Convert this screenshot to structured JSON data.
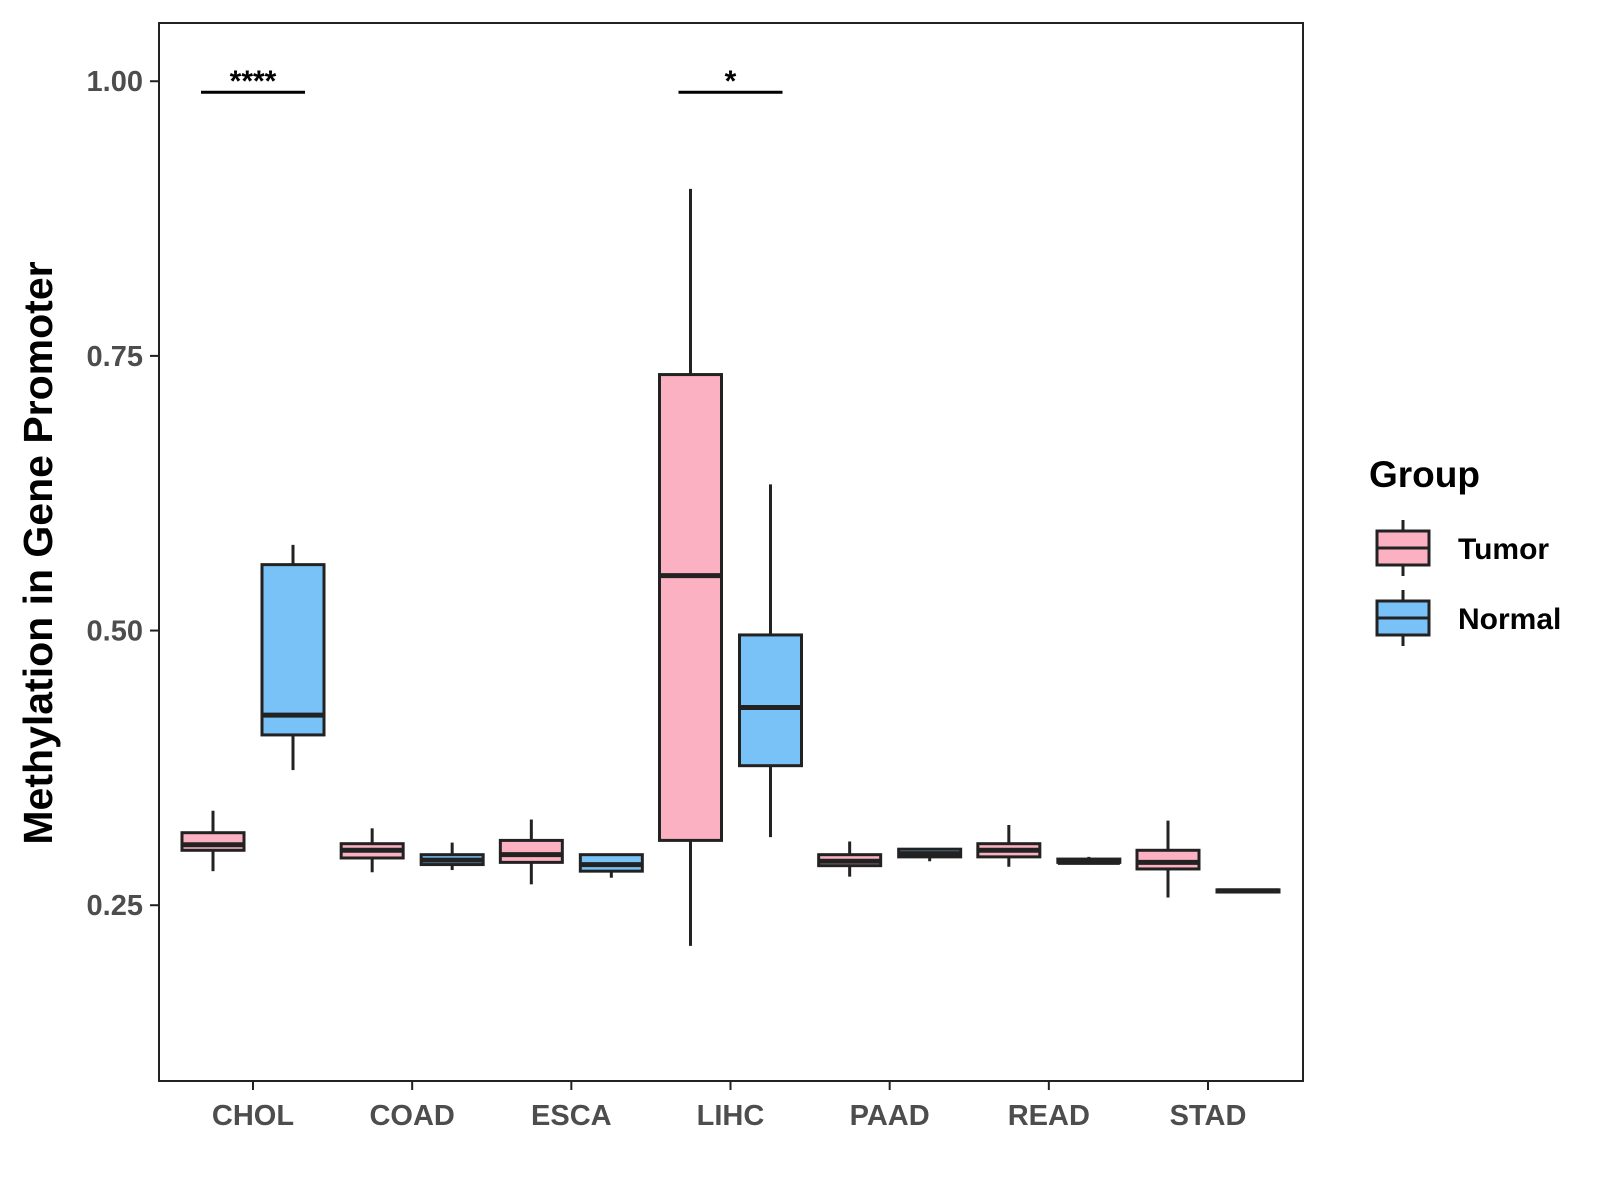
{
  "chart_data": {
    "type": "boxplot",
    "title": "",
    "xlabel": "",
    "ylabel": "Methylation in Gene Promoter",
    "ylim": [
      0.09,
      1.053
    ],
    "yticks": [
      0.25,
      0.5,
      0.75,
      1.0
    ],
    "ytick_labels": [
      "0.25",
      "0.50",
      "0.75",
      "1.00"
    ],
    "categories": [
      "CHOL",
      "COAD",
      "ESCA",
      "LIHC",
      "PAAD",
      "READ",
      "STAD"
    ],
    "legend": {
      "title": "Group",
      "position": "right",
      "entries": [
        {
          "name": "Tumor",
          "color": "#fbb1c1"
        },
        {
          "name": "Normal",
          "color": "#79c2f8"
        }
      ]
    },
    "series": [
      {
        "name": "Tumor",
        "color": "#fbb1c1",
        "boxes": [
          {
            "category": "CHOL",
            "min": 0.281,
            "q1": 0.3,
            "median": 0.305,
            "q3": 0.316,
            "max": 0.336
          },
          {
            "category": "COAD",
            "min": 0.28,
            "q1": 0.293,
            "median": 0.3,
            "q3": 0.306,
            "max": 0.32
          },
          {
            "category": "ESCA",
            "min": 0.269,
            "q1": 0.289,
            "median": 0.296,
            "q3": 0.309,
            "max": 0.328
          },
          {
            "category": "LIHC",
            "min": 0.213,
            "q1": 0.309,
            "median": 0.55,
            "q3": 0.733,
            "max": 0.902
          },
          {
            "category": "PAAD",
            "min": 0.276,
            "q1": 0.286,
            "median": 0.29,
            "q3": 0.296,
            "max": 0.308
          },
          {
            "category": "READ",
            "min": 0.285,
            "q1": 0.294,
            "median": 0.3,
            "q3": 0.306,
            "max": 0.323
          },
          {
            "category": "STAD",
            "min": 0.257,
            "q1": 0.283,
            "median": 0.289,
            "q3": 0.3,
            "max": 0.327
          }
        ]
      },
      {
        "name": "Normal",
        "color": "#79c2f8",
        "boxes": [
          {
            "category": "CHOL",
            "min": 0.373,
            "q1": 0.405,
            "median": 0.423,
            "q3": 0.56,
            "max": 0.578
          },
          {
            "category": "COAD",
            "min": 0.282,
            "q1": 0.287,
            "median": 0.291,
            "q3": 0.296,
            "max": 0.307
          },
          {
            "category": "ESCA",
            "min": 0.275,
            "q1": 0.281,
            "median": 0.287,
            "q3": 0.296,
            "max": 0.297
          },
          {
            "category": "LIHC",
            "min": 0.312,
            "q1": 0.377,
            "median": 0.43,
            "q3": 0.496,
            "max": 0.633
          },
          {
            "category": "PAAD",
            "min": 0.29,
            "q1": 0.294,
            "median": 0.297,
            "q3": 0.301,
            "max": 0.302
          },
          {
            "category": "READ",
            "min": 0.287,
            "q1": 0.289,
            "median": 0.289,
            "q3": 0.292,
            "max": 0.294
          },
          {
            "category": "STAD",
            "min": 0.261,
            "q1": 0.262,
            "median": 0.263,
            "q3": 0.264,
            "max": 0.265
          }
        ]
      }
    ],
    "annotations": [
      {
        "category": "CHOL",
        "label": "****",
        "y": 0.99
      },
      {
        "category": "LIHC",
        "label": "*",
        "y": 0.99
      }
    ]
  }
}
